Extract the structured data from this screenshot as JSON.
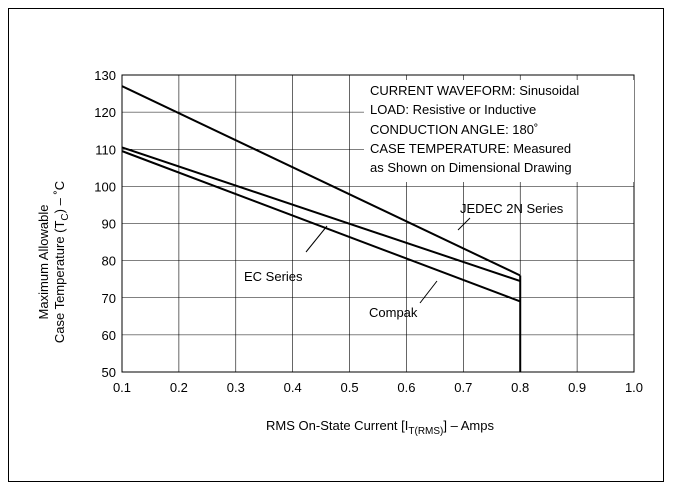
{
  "chart_data": {
    "type": "line",
    "xlabel_main": "RMS On-State Current [I",
    "xlabel_sub": "T(RMS)",
    "xlabel_tail": "] – Amps",
    "ylabel_line1": "Maximum Allowable",
    "ylabel_line2_a": "Case Temperature (T",
    "ylabel_line2_sub": "C",
    "ylabel_line2_b": ") – ˚C",
    "xlim": [
      0.1,
      1.0
    ],
    "ylim": [
      50,
      130
    ],
    "x_ticks": [
      "0.1",
      "0.2",
      "0.3",
      "0.4",
      "0.5",
      "0.6",
      "0.7",
      "0.8",
      "0.9",
      "1.0"
    ],
    "y_ticks": [
      "50",
      "60",
      "70",
      "80",
      "90",
      "100",
      "110",
      "120",
      "130"
    ],
    "grid": true,
    "series": [
      {
        "name": "JEDEC 2N Series",
        "x": [
          0.1,
          0.8
        ],
        "y": [
          127,
          76
        ]
      },
      {
        "name": "EC Series",
        "x": [
          0.1,
          0.8
        ],
        "y": [
          110.5,
          74.5
        ]
      },
      {
        "name": "Compak",
        "x": [
          0.1,
          0.8
        ],
        "y": [
          109.5,
          69
        ]
      }
    ],
    "cutoff_x": 0.8,
    "annotation_lines": [
      "CURRENT WAVEFORM: Sinusoidal",
      "LOAD: Resistive or Inductive",
      "CONDUCTION ANGLE: 180˚",
      "CASE TEMPERATURE: Measured",
      "as Shown on Dimensional Drawing"
    ]
  }
}
